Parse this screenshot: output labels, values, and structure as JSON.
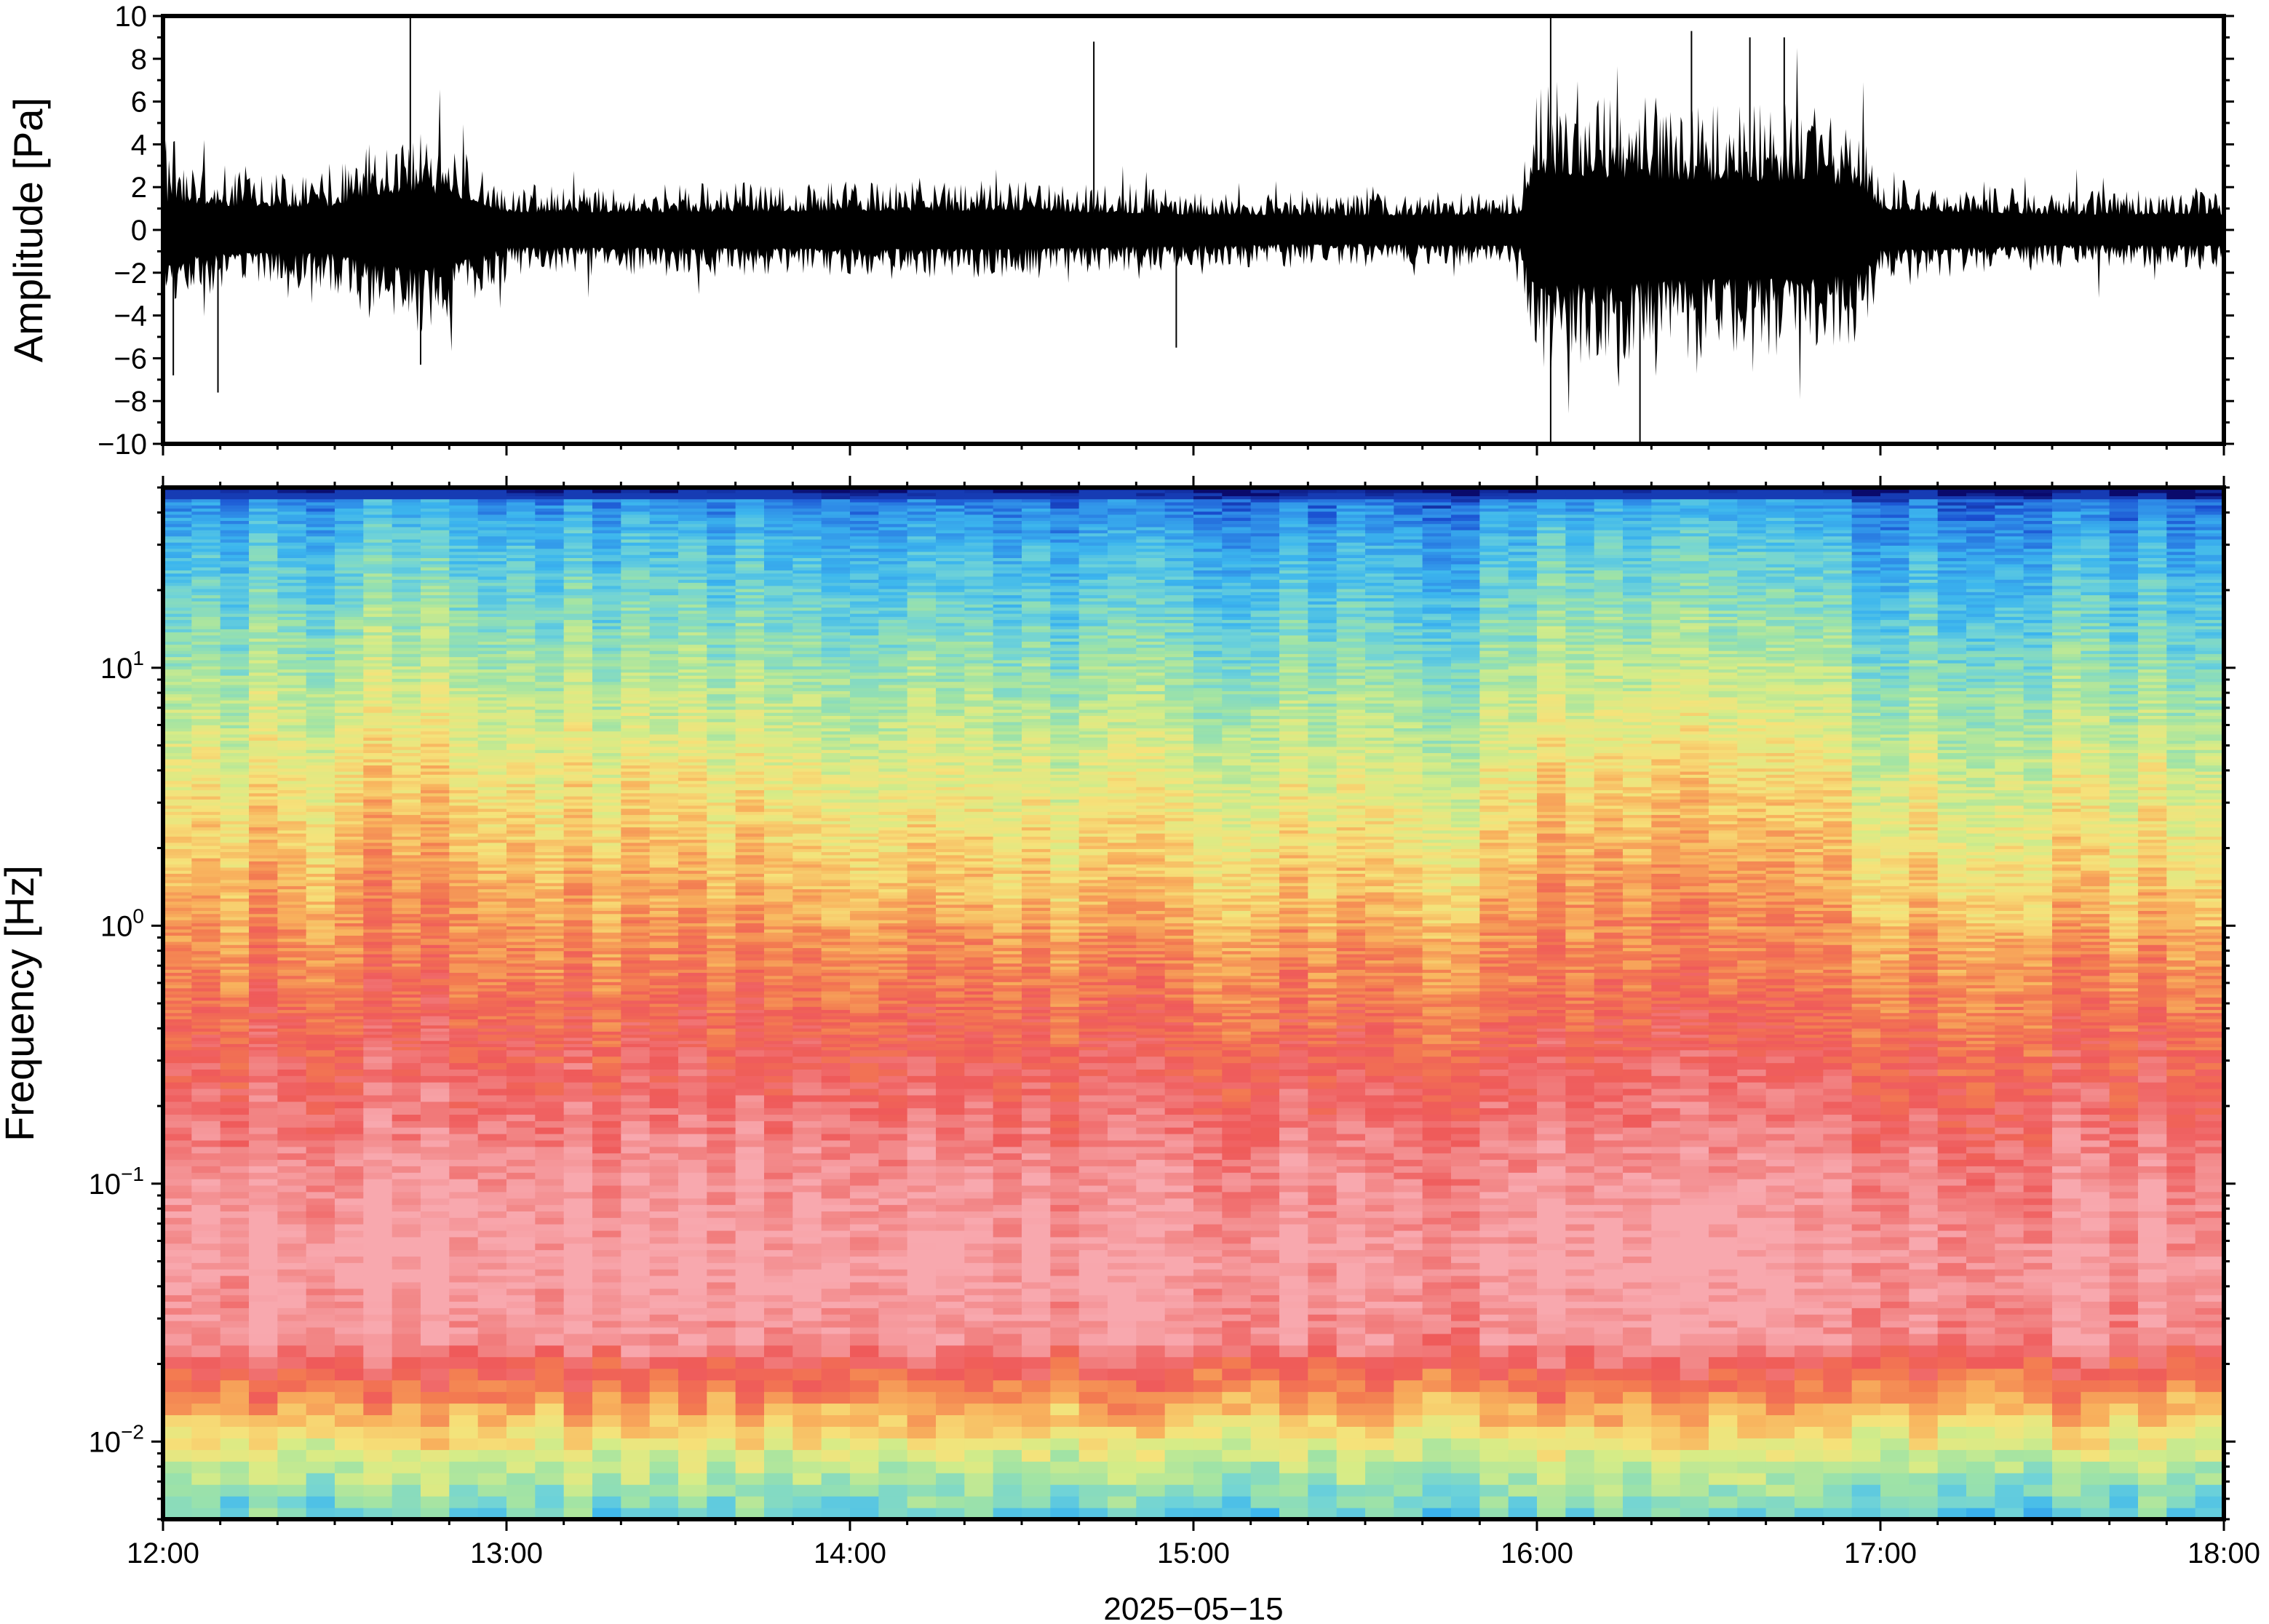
{
  "chart_data": [
    {
      "type": "line",
      "panel": "waveform",
      "ylabel": "Amplitude [Pa]",
      "ylim": [
        -10,
        10
      ],
      "y_ticks": [
        -10,
        -8,
        -6,
        -4,
        -2,
        0,
        2,
        4,
        6,
        8,
        10
      ],
      "y_tick_labels": [
        "−10",
        "−8",
        "−6",
        "−4",
        "−2",
        "0",
        "2",
        "4",
        "6",
        "8",
        "10"
      ],
      "x_range": [
        "12:00",
        "18:00"
      ],
      "trace_color": "#000000",
      "envelope": {
        "x_hours": [
          12.0,
          12.25,
          12.5,
          12.6,
          12.75,
          12.85,
          13.0,
          13.5,
          14.0,
          14.5,
          15.0,
          15.5,
          15.95,
          16.0,
          16.2,
          16.5,
          16.8,
          16.95,
          17.0,
          17.5,
          18.0
        ],
        "half_amplitude_pa": [
          2.4,
          1.9,
          2.0,
          2.9,
          3.3,
          2.8,
          1.5,
          1.5,
          1.6,
          1.6,
          1.3,
          1.2,
          1.3,
          4.8,
          4.4,
          4.1,
          4.1,
          3.6,
          1.7,
          1.3,
          1.3
        ]
      },
      "spikes": [
        {
          "t_hours": 12.03,
          "pa": -6.8
        },
        {
          "t_hours": 12.16,
          "pa": -7.6
        },
        {
          "t_hours": 12.72,
          "pa": 9.9
        },
        {
          "t_hours": 12.75,
          "pa": -6.3
        },
        {
          "t_hours": 14.71,
          "pa": 8.8
        },
        {
          "t_hours": 14.95,
          "pa": -5.5
        },
        {
          "t_hours": 16.04,
          "pa": 10.0
        },
        {
          "t_hours": 16.04,
          "pa": -10.0
        },
        {
          "t_hours": 16.3,
          "pa": -10.0
        },
        {
          "t_hours": 16.45,
          "pa": 9.3
        },
        {
          "t_hours": 16.62,
          "pa": 9.0
        },
        {
          "t_hours": 16.72,
          "pa": 9.0
        }
      ]
    },
    {
      "type": "heatmap",
      "panel": "spectrogram",
      "ylabel": "Frequency [Hz]",
      "y_scale": "log",
      "ylim_hz": [
        0.005,
        50
      ],
      "y_tick_labels": [
        {
          "base": "10",
          "exp": "−2",
          "value": 0.01
        },
        {
          "base": "10",
          "exp": "−1",
          "value": 0.1
        },
        {
          "base": "10",
          "exp": "0",
          "value": 1
        },
        {
          "base": "10",
          "exp": "1",
          "value": 10
        }
      ],
      "x_tick_labels": [
        "12:00",
        "13:00",
        "14:00",
        "15:00",
        "16:00",
        "17:00",
        "18:00"
      ],
      "x_date_label": "2025−05−15",
      "colormap": [
        "#0a0a6b",
        "#1a4fd1",
        "#2f8ee8",
        "#3cb6ee",
        "#6fd3d8",
        "#9fe3a6",
        "#d6ec87",
        "#f6e27a",
        "#f8b25d",
        "#f37c51",
        "#ef5a5a",
        "#f28585",
        "#f8a8ae"
      ],
      "intensity_profile": {
        "log10_freq": [
          -2.3,
          -2.1,
          -1.9,
          -1.75,
          -1.6,
          -1.3,
          -1.0,
          -0.6,
          -0.2,
          0.2,
          0.6,
          0.9,
          1.2,
          1.5,
          1.65,
          1.7
        ],
        "base_level": [
          0.33,
          0.48,
          0.66,
          0.8,
          0.96,
          1.0,
          0.96,
          0.86,
          0.76,
          0.66,
          0.56,
          0.47,
          0.37,
          0.27,
          0.18,
          0.0
        ]
      },
      "quiet_periods_hours": [
        [
          13.85,
          15.8
        ],
        [
          16.95,
          18.0
        ]
      ],
      "loud_periods_hours": [
        [
          12.5,
          12.95
        ],
        [
          16.0,
          16.95
        ]
      ]
    }
  ]
}
